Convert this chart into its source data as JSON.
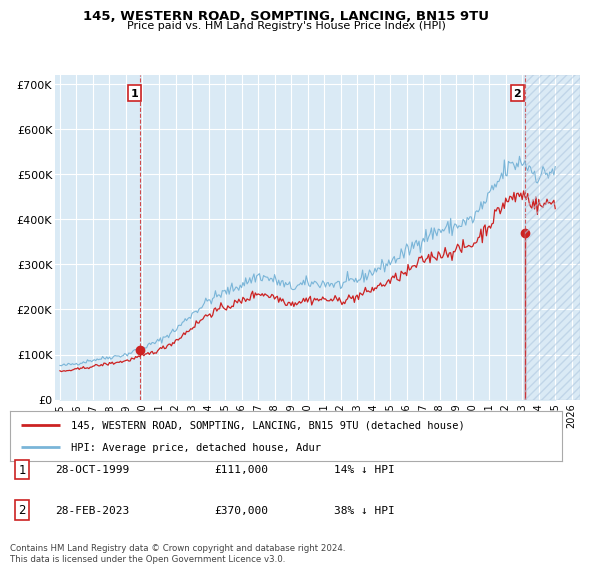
{
  "title": "145, WESTERN ROAD, SOMPTING, LANCING, BN15 9TU",
  "subtitle": "Price paid vs. HM Land Registry's House Price Index (HPI)",
  "ylabel_ticks": [
    "£0",
    "£100K",
    "£200K",
    "£300K",
    "£400K",
    "£500K",
    "£600K",
    "£700K"
  ],
  "ytick_values": [
    0,
    100000,
    200000,
    300000,
    400000,
    500000,
    600000,
    700000
  ],
  "ylim": [
    0,
    720000
  ],
  "hpi_color": "#7ab5d8",
  "hpi_fill_color": "#daeaf5",
  "price_color": "#cc2222",
  "transaction1": {
    "year": 1999.83,
    "price": 111000,
    "label": "1",
    "date": "28-OCT-1999",
    "hpi_pct": "14%"
  },
  "transaction2": {
    "year": 2023.16,
    "price": 370000,
    "label": "2",
    "date": "28-FEB-2023",
    "hpi_pct": "38%"
  },
  "legend_line1": "145, WESTERN ROAD, SOMPTING, LANCING, BN15 9TU (detached house)",
  "legend_line2": "HPI: Average price, detached house, Adur",
  "footnote": "Contains HM Land Registry data © Crown copyright and database right 2024.\nThis data is licensed under the Open Government Licence v3.0.",
  "table_row1": [
    "1",
    "28-OCT-1999",
    "£111,000",
    "14% ↓ HPI"
  ],
  "table_row2": [
    "2",
    "28-FEB-2023",
    "£370,000",
    "38% ↓ HPI"
  ],
  "background_color": "#ffffff",
  "chart_bg_color": "#daeaf5",
  "grid_color": "#b0c8e0",
  "hatch_color": "#b0c8e0"
}
